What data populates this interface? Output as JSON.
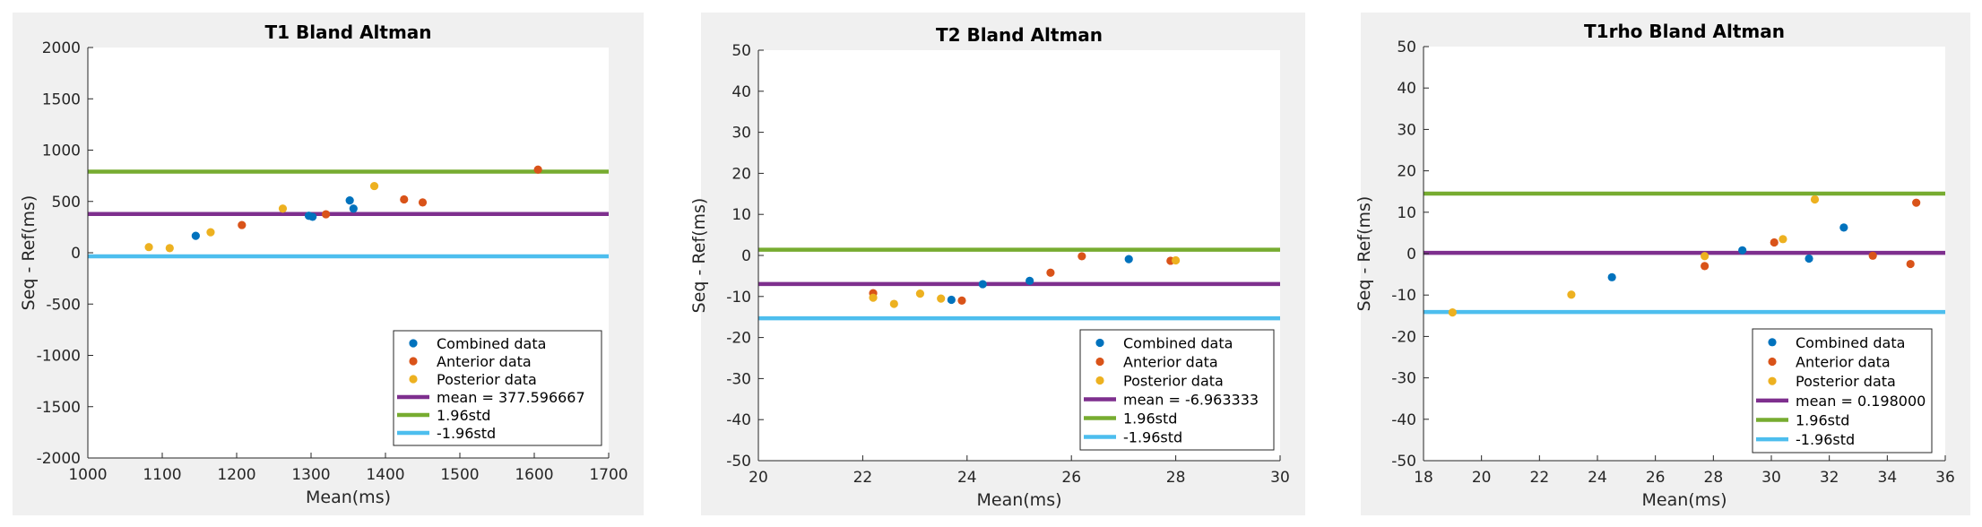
{
  "chart_data": [
    {
      "type": "scatter",
      "title": "T1 Bland Altman",
      "xlabel": "Mean(ms)",
      "ylabel": "Seq - Ref(ms)",
      "xlim": [
        1000,
        1700
      ],
      "ylim": [
        -2000,
        2000
      ],
      "xticks": [
        1000,
        1100,
        1200,
        1300,
        1400,
        1500,
        1600,
        1700
      ],
      "yticks": [
        -2000,
        -1500,
        -1000,
        -500,
        0,
        500,
        1000,
        1500,
        2000
      ],
      "grid": false,
      "legend_position": "bottom-right",
      "series": [
        {
          "name": "Combined data",
          "color": "#0072bd",
          "kind": "scatter",
          "x": [
            1145,
            1297,
            1302,
            1352,
            1357
          ],
          "y": [
            165,
            360,
            350,
            510,
            430
          ]
        },
        {
          "name": "Anterior data",
          "color": "#d95319",
          "kind": "scatter",
          "x": [
            1207,
            1320,
            1425,
            1450,
            1605
          ],
          "y": [
            270,
            375,
            520,
            490,
            810
          ]
        },
        {
          "name": "Posterior data",
          "color": "#edb120",
          "kind": "scatter",
          "x": [
            1082,
            1110,
            1165,
            1262,
            1385
          ],
          "y": [
            55,
            45,
            200,
            430,
            650
          ]
        },
        {
          "name": "mean = 377.596667",
          "color": "#7e2f8e",
          "kind": "hline",
          "y": 377.596667
        },
        {
          "name": "1.96std",
          "color": "#77ac30",
          "kind": "hline",
          "y": 790
        },
        {
          "name": "-1.96std",
          "color": "#4dbeee",
          "kind": "hline",
          "y": -35
        }
      ]
    },
    {
      "type": "scatter",
      "title": "T2 Bland Altman",
      "xlabel": "Mean(ms)",
      "ylabel": "Seq - Ref(ms)",
      "xlim": [
        20,
        30
      ],
      "ylim": [
        -50,
        50
      ],
      "xticks": [
        20,
        22,
        24,
        26,
        28,
        30
      ],
      "yticks": [
        -50,
        -40,
        -30,
        -20,
        -10,
        0,
        10,
        20,
        30,
        40,
        50
      ],
      "grid": false,
      "legend_position": "bottom-right",
      "series": [
        {
          "name": "Combined data",
          "color": "#0072bd",
          "kind": "scatter",
          "x": [
            23.7,
            24.3,
            25.2,
            27.1
          ],
          "y": [
            -10.8,
            -7.0,
            -6.2,
            -0.9
          ]
        },
        {
          "name": "Anterior data",
          "color": "#d95319",
          "kind": "scatter",
          "x": [
            22.2,
            23.9,
            25.6,
            26.2,
            27.9
          ],
          "y": [
            -9.2,
            -11.0,
            -4.2,
            -0.2,
            -1.3
          ]
        },
        {
          "name": "Posterior data",
          "color": "#edb120",
          "kind": "scatter",
          "x": [
            22.2,
            22.6,
            23.1,
            23.5,
            28.0
          ],
          "y": [
            -10.3,
            -11.8,
            -9.3,
            -10.5,
            -1.2
          ]
        },
        {
          "name": "mean = -6.963333",
          "color": "#7e2f8e",
          "kind": "hline",
          "y": -6.963333
        },
        {
          "name": "1.96std",
          "color": "#77ac30",
          "kind": "hline",
          "y": 1.4
        },
        {
          "name": "-1.96std",
          "color": "#4dbeee",
          "kind": "hline",
          "y": -15.3
        }
      ]
    },
    {
      "type": "scatter",
      "title": "T1rho Bland Altman",
      "xlabel": "Mean(ms)",
      "ylabel": "Seq - Ref(ms)",
      "xlim": [
        18,
        36
      ],
      "ylim": [
        -50,
        50
      ],
      "xticks": [
        18,
        20,
        22,
        24,
        26,
        28,
        30,
        32,
        34,
        36
      ],
      "yticks": [
        -50,
        -40,
        -30,
        -20,
        -10,
        0,
        10,
        20,
        30,
        40,
        50
      ],
      "grid": false,
      "legend_position": "bottom-right",
      "series": [
        {
          "name": "Combined data",
          "color": "#0072bd",
          "kind": "scatter",
          "x": [
            24.5,
            29.0,
            31.3,
            32.5
          ],
          "y": [
            -5.7,
            0.8,
            -1.2,
            6.3
          ]
        },
        {
          "name": "Anterior data",
          "color": "#d95319",
          "kind": "scatter",
          "x": [
            27.7,
            30.1,
            33.5,
            34.8,
            35.0
          ],
          "y": [
            -3.0,
            2.7,
            -0.5,
            -2.5,
            12.3
          ]
        },
        {
          "name": "Posterior data",
          "color": "#edb120",
          "kind": "scatter",
          "x": [
            19.0,
            23.1,
            27.7,
            30.4,
            31.5
          ],
          "y": [
            -14.2,
            -9.9,
            -0.6,
            3.5,
            13.1
          ]
        },
        {
          "name": "mean = 0.198000",
          "color": "#7e2f8e",
          "kind": "hline",
          "y": 0.198
        },
        {
          "name": "1.96std",
          "color": "#77ac30",
          "kind": "hline",
          "y": 14.5
        },
        {
          "name": "-1.96std",
          "color": "#4dbeee",
          "kind": "hline",
          "y": -14.1
        }
      ]
    }
  ]
}
